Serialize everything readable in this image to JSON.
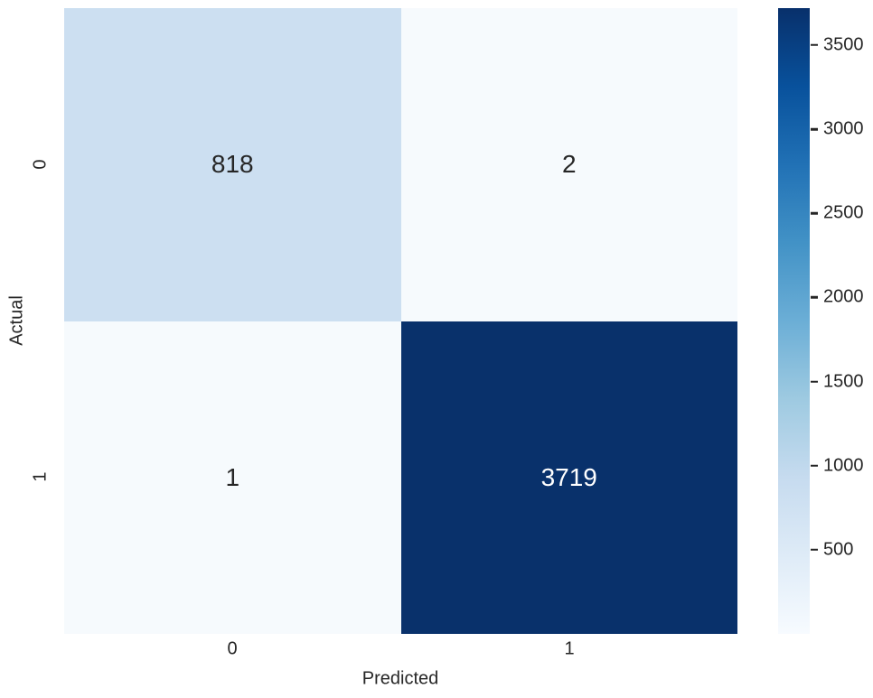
{
  "figure": {
    "background": "#ffffff",
    "text_color": "#262626"
  },
  "chart_data": {
    "type": "heatmap",
    "title": "",
    "xlabel": "Predicted",
    "ylabel": "Actual",
    "x_tick_labels": [
      "0",
      "1"
    ],
    "y_tick_labels": [
      "0",
      "1"
    ],
    "matrix": [
      [
        818,
        2
      ],
      [
        1,
        3719
      ]
    ],
    "annotations": [
      [
        "818",
        "2"
      ],
      [
        "1",
        "3719"
      ]
    ],
    "vmin": 1,
    "vmax": 3719,
    "colormap": "Blues",
    "colormap_stops": [
      "#f7fbff",
      "#deebf7",
      "#c6dbef",
      "#9ecae1",
      "#6baed6",
      "#4292c6",
      "#2171b5",
      "#08519c",
      "#08306b"
    ],
    "cell_colors": [
      [
        "#ccdff1",
        "#f6fafd"
      ],
      [
        "#f6fafd",
        "#09316b"
      ]
    ],
    "cell_text_colors": [
      [
        "#262626",
        "#262626"
      ],
      [
        "#262626",
        "#ffffff"
      ]
    ],
    "colorbar_ticks": [
      500,
      1000,
      1500,
      2000,
      2500,
      3000,
      3500
    ],
    "legend_position": "right",
    "grid": false
  }
}
